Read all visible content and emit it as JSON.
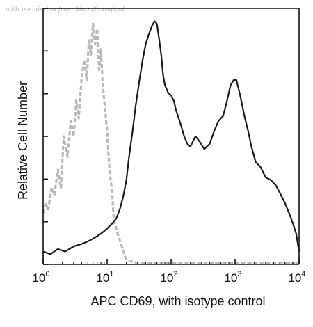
{
  "watermark": "with permission from Sino Biological",
  "chart_data": {
    "type": "line",
    "xlabel": "APC CD69, with isotype control",
    "ylabel": "Relative Cell Number",
    "xscale": "log",
    "xlim": [
      1,
      10000
    ],
    "ylim": [
      0,
      100
    ],
    "x_ticks": [
      {
        "base": "10",
        "exp": "0"
      },
      {
        "base": "10",
        "exp": "1"
      },
      {
        "base": "10",
        "exp": "2"
      },
      {
        "base": "10",
        "exp": "3"
      },
      {
        "base": "10",
        "exp": "4"
      }
    ],
    "y_tick_count": 6,
    "grid": false,
    "colors": {
      "sample": "#1a1a1a",
      "isotype": "#b8b8b8",
      "axis": "#111111"
    },
    "series": [
      {
        "style": "dashed",
        "color": "#b8b8b8",
        "x": [
          1.0,
          1.1,
          1.2,
          1.35,
          1.5,
          1.7,
          1.9,
          2.1,
          2.4,
          2.7,
          3.0,
          3.3,
          3.6,
          4.0,
          4.4,
          4.8,
          5.2,
          5.6,
          6.0,
          6.5,
          7.0,
          7.5,
          8.0,
          8.5,
          9.0,
          9.5,
          10.0,
          10.5,
          11.0,
          11.5,
          12.0,
          12.5,
          13.0,
          14.0,
          15.0,
          16.0,
          17.0,
          18.0,
          19.0,
          20.0,
          22.0,
          25.0,
          30.0,
          50.0,
          100.0,
          300.0,
          1000.0,
          3000.0,
          10000.0
        ],
        "y": [
          20,
          24,
          21,
          30,
          27,
          37,
          30,
          50,
          42,
          56,
          50,
          64,
          57,
          73,
          80,
          72,
          88,
          82,
          94,
          86,
          92,
          76,
          84,
          71,
          64,
          58,
          52,
          43,
          36,
          32,
          28,
          20,
          16,
          14,
          11,
          9,
          7,
          5,
          3,
          2,
          1.5,
          1,
          0.6,
          0.5,
          0.4,
          0.4,
          0.4,
          0.4,
          0.4
        ]
      },
      {
        "style": "solid",
        "color": "#1a1a1a",
        "x": [
          1.0,
          1.3,
          1.7,
          2.2,
          3.0,
          4.0,
          5.0,
          6.0,
          7.0,
          8.0,
          9.0,
          10.0,
          12.0,
          14.0,
          16.0,
          18.0,
          20.0,
          22.0,
          25.0,
          28.0,
          32.0,
          36.0,
          40.0,
          45.0,
          50.0,
          55.0,
          60.0,
          65.0,
          70.0,
          75.0,
          80.0,
          90.0,
          100.0,
          110.0,
          120.0,
          140.0,
          160.0,
          180.0,
          200.0,
          240.0,
          280.0,
          330.0,
          400.0,
          470.0,
          550.0,
          650.0,
          750.0,
          850.0,
          950.0,
          1050.0,
          1200.0,
          1400.0,
          1600.0,
          1800.0,
          2100.0,
          2500.0,
          3000.0,
          3600.0,
          4300.0,
          5000.0,
          6000.0,
          7000.0,
          8000.0,
          9000.0,
          10000.0
        ],
        "y": [
          5,
          4,
          6,
          5,
          7,
          8,
          9,
          10,
          11,
          12,
          13,
          14,
          16,
          18,
          22,
          27,
          33,
          42,
          52,
          62,
          72,
          80,
          86,
          90,
          93,
          95,
          94,
          88,
          82,
          74,
          70,
          67,
          66,
          64,
          60,
          55,
          50,
          47,
          46,
          50,
          48,
          45,
          47,
          52,
          56,
          58,
          64,
          70,
          72,
          72,
          66,
          58,
          52,
          46,
          40,
          38,
          34,
          33,
          31,
          28,
          24,
          20,
          16,
          12,
          5
        ]
      }
    ]
  }
}
